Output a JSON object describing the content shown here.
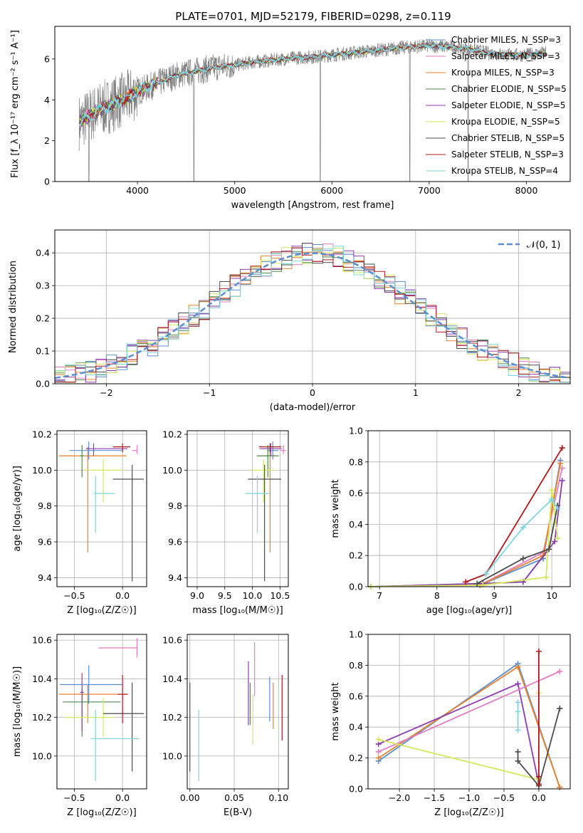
{
  "figure_title": "PLATE=0701, MJD=52179, FIBERID=0298, z=0.119",
  "colors": {
    "chabrier_miles": "#5a8fd6",
    "salpeter_miles": "#e57ac2",
    "kroupa_miles": "#e8822a",
    "chabrier_elodie": "#4f8a4f",
    "salpeter_elodie": "#8e3bb0",
    "kroupa_elodie": "#d6e85c",
    "chabrier_stelib": "#4d4d4d",
    "salpeter_stelib": "#b01a1a",
    "kroupa_stelib": "#7fd6de",
    "data": "#808080",
    "normal": "#5a8fd6"
  },
  "chart_data": [
    {
      "id": "spectrum",
      "type": "line",
      "xlabel": "wavelength [Angstrom, rest frame]",
      "ylabel": "Flux [f_λ 10⁻¹⁷ erg cm⁻² s⁻¹ A⁻¹]",
      "xlim": [
        3150,
        8450
      ],
      "ylim": [
        0,
        7.6
      ],
      "xticks": [
        4000,
        5000,
        6000,
        7000,
        8000
      ],
      "yticks": [
        0,
        2,
        4,
        6
      ],
      "grid": false,
      "legend_position": "right",
      "legend": [
        {
          "key": "chabrier_miles",
          "label": "Chabrier MILES, N_SSP=3"
        },
        {
          "key": "salpeter_miles",
          "label": "Salpeter MILES, N_SSP=3"
        },
        {
          "key": "kroupa_miles",
          "label": "Kroupa MILES, N_SSP=3"
        },
        {
          "key": "chabrier_elodie",
          "label": "Chabrier ELODIE, N_SSP=5"
        },
        {
          "key": "salpeter_elodie",
          "label": "Salpeter ELODIE, N_SSP=5"
        },
        {
          "key": "kroupa_elodie",
          "label": "Kroupa ELODIE, N_SSP=5"
        },
        {
          "key": "chabrier_stelib",
          "label": "Chabrier STELIB, N_SSP=5"
        },
        {
          "key": "salpeter_stelib",
          "label": "Salpeter STELIB, N_SSP=3"
        },
        {
          "key": "kroupa_stelib",
          "label": "Kroupa STELIB, N_SSP=4"
        }
      ],
      "continuum": {
        "x": [
          3400,
          3500,
          3600,
          3700,
          3800,
          3900,
          4000,
          4200,
          4400,
          4600,
          4800,
          5000,
          5200,
          5400,
          5600,
          5800,
          6000,
          6200,
          6400,
          6600,
          6800,
          7000,
          7200,
          7400,
          7600,
          7800,
          8000,
          8200
        ],
        "y": [
          2.9,
          3.2,
          3.5,
          3.7,
          3.9,
          4.1,
          4.4,
          4.8,
          5.2,
          5.4,
          5.6,
          5.7,
          5.85,
          5.95,
          6.05,
          6.1,
          6.2,
          6.3,
          6.4,
          6.5,
          6.6,
          6.65,
          6.6,
          6.5,
          6.3,
          6.2,
          6.2,
          6.3
        ]
      },
      "spike_wavelengths": [
        3500,
        4580,
        5880,
        6800,
        7400
      ]
    },
    {
      "id": "residuals",
      "type": "histogram",
      "xlabel": "(data-model)/error",
      "ylabel": "Normed distribution",
      "xlim": [
        -2.5,
        2.5
      ],
      "ylim": [
        0,
        0.47
      ],
      "xticks": [
        -2,
        -1,
        0,
        1,
        2
      ],
      "yticks": [
        0.0,
        0.1,
        0.2,
        0.3,
        0.4
      ],
      "grid": true,
      "legend_position": "top-right",
      "legend": [
        {
          "key": "normal",
          "label": "𝒩(0, 1)"
        }
      ],
      "bin_width": 0.1,
      "normal_curve": {
        "mean": 0,
        "sigma": 1
      }
    },
    {
      "id": "age_vs_Z",
      "type": "errorbar",
      "xlabel": "Z [log₁₀(Z/Z☉)]",
      "ylabel": "age  [log₁₀(age/yr)]",
      "xlim": [
        -0.68,
        0.25
      ],
      "ylim": [
        9.35,
        10.22
      ],
      "xticks": [
        -0.5,
        0.0
      ],
      "yticks": [
        9.4,
        9.6,
        9.8,
        10.0,
        10.2
      ],
      "grid": true,
      "points": [
        {
          "key": "chabrier_miles",
          "x": -0.35,
          "xlo": 0.2,
          "xhi": 0.35,
          "y": 10.11,
          "ylo": 0.05,
          "yhi": 0.05
        },
        {
          "key": "salpeter_miles",
          "x": 0.15,
          "xlo": 0.05,
          "xhi": 0.0,
          "y": 10.11,
          "ylo": 0.02,
          "yhi": 0.03
        },
        {
          "key": "kroupa_miles",
          "x": -0.36,
          "xlo": 0.3,
          "xhi": 0.4,
          "y": 10.08,
          "ylo": 0.54,
          "yhi": 0.05
        },
        {
          "key": "chabrier_elodie",
          "x": -0.42,
          "xlo": 0.02,
          "xhi": 0.02,
          "y": 10.08,
          "ylo": 0.12,
          "yhi": 0.06
        },
        {
          "key": "salpeter_elodie",
          "x": -0.3,
          "xlo": 0.08,
          "xhi": 0.35,
          "y": 10.12,
          "ylo": 0.04,
          "yhi": 0.03
        },
        {
          "key": "kroupa_elodie",
          "x": -0.2,
          "xlo": 0.2,
          "xhi": 0.2,
          "y": 10.0,
          "ylo": 0.18,
          "yhi": 0.06
        },
        {
          "key": "chabrier_stelib",
          "x": 0.1,
          "xlo": 0.2,
          "xhi": 0.12,
          "y": 9.95,
          "ylo": 0.57,
          "yhi": 0.08
        },
        {
          "key": "salpeter_stelib",
          "x": 0.0,
          "xlo": 0.1,
          "xhi": 0.08,
          "y": 10.13,
          "ylo": 0.03,
          "yhi": 0.02
        },
        {
          "key": "kroupa_stelib",
          "x": -0.28,
          "xlo": 0.02,
          "xhi": 0.2,
          "y": 9.87,
          "ylo": 0.22,
          "yhi": 0.1
        }
      ]
    },
    {
      "id": "age_vs_mass",
      "type": "errorbar",
      "xlabel": "mass [log₁₀(M/M☉)]",
      "ylabel": "",
      "xlim": [
        8.82,
        10.65
      ],
      "ylim": [
        9.35,
        10.22
      ],
      "xticks": [
        9.0,
        9.5,
        10.0,
        10.5
      ],
      "yticks": [
        9.4,
        9.6,
        9.8,
        10.0,
        10.2
      ],
      "grid": true,
      "points": [
        {
          "key": "chabrier_miles",
          "x": 10.37,
          "xlo": 0.1,
          "xhi": 0.1,
          "y": 10.11,
          "ylo": 0.05,
          "yhi": 0.05
        },
        {
          "key": "salpeter_miles",
          "x": 10.56,
          "xlo": 0.05,
          "xhi": 0.05,
          "y": 10.11,
          "ylo": 0.02,
          "yhi": 0.03
        },
        {
          "key": "kroupa_miles",
          "x": 10.32,
          "xlo": 0.1,
          "xhi": 0.1,
          "y": 10.08,
          "ylo": 0.54,
          "yhi": 0.05
        },
        {
          "key": "chabrier_elodie",
          "x": 10.28,
          "xlo": 0.2,
          "xhi": 0.2,
          "y": 10.08,
          "ylo": 0.12,
          "yhi": 0.06
        },
        {
          "key": "salpeter_elodie",
          "x": 10.33,
          "xlo": 0.2,
          "xhi": 0.2,
          "y": 10.12,
          "ylo": 0.04,
          "yhi": 0.03
        },
        {
          "key": "kroupa_elodie",
          "x": 10.2,
          "xlo": 0.2,
          "xhi": 0.2,
          "y": 10.0,
          "ylo": 0.18,
          "yhi": 0.06
        },
        {
          "key": "chabrier_stelib",
          "x": 10.22,
          "xlo": 0.3,
          "xhi": 0.3,
          "y": 9.95,
          "ylo": 0.57,
          "yhi": 0.08
        },
        {
          "key": "salpeter_stelib",
          "x": 10.32,
          "xlo": 0.2,
          "xhi": 0.2,
          "y": 10.13,
          "ylo": 0.03,
          "yhi": 0.02
        },
        {
          "key": "kroupa_stelib",
          "x": 10.09,
          "xlo": 0.22,
          "xhi": 0.22,
          "y": 9.87,
          "ylo": 0.22,
          "yhi": 0.1
        }
      ]
    },
    {
      "id": "mass_weight_vs_age",
      "type": "line",
      "xlabel": "age  [log₁₀(age/yr)]",
      "ylabel": "mass weight",
      "xlim": [
        6.8,
        10.32
      ],
      "ylim": [
        0,
        1
      ],
      "xticks": [
        7,
        8,
        9,
        10
      ],
      "yticks": [
        0.0,
        0.2,
        0.4,
        0.6,
        0.8,
        1.0
      ],
      "grid": true,
      "series": [
        {
          "key": "chabrier_miles",
          "x": [
            8.75,
            9.85,
            10.15
          ],
          "y": [
            0.01,
            0.18,
            0.81
          ]
        },
        {
          "key": "salpeter_miles",
          "x": [
            8.75,
            9.85,
            10.18
          ],
          "y": [
            0.01,
            0.22,
            0.76
          ]
        },
        {
          "key": "kroupa_miles",
          "x": [
            8.75,
            9.85,
            10.15
          ],
          "y": [
            0.01,
            0.2,
            0.79
          ]
        },
        {
          "key": "chabrier_elodie",
          "x": [
            6.85,
            8.8,
            9.5,
            9.95,
            10.1
          ],
          "y": [
            0.0,
            0.02,
            0.03,
            0.24,
            0.52
          ]
        },
        {
          "key": "salpeter_elodie",
          "x": [
            6.85,
            8.8,
            9.5,
            10.05,
            10.18
          ],
          "y": [
            0.0,
            0.02,
            0.03,
            0.29,
            0.68
          ]
        },
        {
          "key": "kroupa_elodie",
          "x": [
            6.85,
            8.8,
            9.9,
            10.0,
            10.1
          ],
          "y": [
            0.0,
            0.01,
            0.06,
            0.62,
            0.31
          ]
        },
        {
          "key": "chabrier_stelib",
          "x": [
            8.7,
            9.5,
            9.95,
            10.1
          ],
          "y": [
            0.02,
            0.18,
            0.24,
            0.52
          ]
        },
        {
          "key": "salpeter_stelib",
          "x": [
            8.5,
            8.85,
            10.18
          ],
          "y": [
            0.03,
            0.08,
            0.89
          ]
        },
        {
          "key": "kroupa_stelib",
          "x": [
            8.85,
            9.5,
            10.0,
            10.1
          ],
          "y": [
            0.08,
            0.38,
            0.56,
            0.5
          ]
        }
      ]
    },
    {
      "id": "mass_vs_Z",
      "type": "errorbar",
      "xlabel": "Z [log₁₀(Z/Z☉)]",
      "ylabel": "mass [log₁₀(M/M☉)]",
      "xlim": [
        -0.68,
        0.25
      ],
      "ylim": [
        9.83,
        10.63
      ],
      "xticks": [
        -0.5,
        0.0
      ],
      "yticks": [
        10.0,
        10.2,
        10.4,
        10.6
      ],
      "grid": true,
      "points": [
        {
          "key": "chabrier_miles",
          "x": -0.35,
          "xlo": 0.3,
          "xhi": 0.35,
          "y": 10.37,
          "ylo": 0.1,
          "yhi": 0.1
        },
        {
          "key": "salpeter_miles",
          "x": 0.15,
          "xlo": 0.4,
          "xhi": 0.0,
          "y": 10.56,
          "ylo": 0.05,
          "yhi": 0.05
        },
        {
          "key": "kroupa_miles",
          "x": -0.36,
          "xlo": 0.3,
          "xhi": 0.42,
          "y": 10.32,
          "ylo": 0.15,
          "yhi": 0.05
        },
        {
          "key": "chabrier_elodie",
          "x": -0.42,
          "xlo": 0.2,
          "xhi": 0.4,
          "y": 10.28,
          "ylo": 0.18,
          "yhi": 0.07
        },
        {
          "key": "salpeter_elodie",
          "x": -0.42,
          "xlo": 0.02,
          "xhi": 0.02,
          "y": 10.33,
          "ylo": 0.2,
          "yhi": 0.1
        },
        {
          "key": "kroupa_elodie",
          "x": -0.2,
          "xlo": 0.4,
          "xhi": 0.12,
          "y": 10.2,
          "ylo": 0.1,
          "yhi": 0.1
        },
        {
          "key": "chabrier_stelib",
          "x": 0.1,
          "xlo": 0.3,
          "xhi": 0.12,
          "y": 10.22,
          "ylo": 0.3,
          "yhi": 0.16
        },
        {
          "key": "salpeter_stelib",
          "x": 0.0,
          "xlo": 0.05,
          "xhi": 0.05,
          "y": 10.32,
          "ylo": 0.15,
          "yhi": 0.1
        },
        {
          "key": "kroupa_stelib",
          "x": -0.28,
          "xlo": 0.05,
          "xhi": 0.45,
          "y": 10.09,
          "ylo": 0.22,
          "yhi": 0.15
        }
      ]
    },
    {
      "id": "mass_vs_ebv",
      "type": "errorbar",
      "xlabel": "E(B-V)",
      "ylabel": "",
      "xlim": [
        -0.003,
        0.111
      ],
      "ylim": [
        9.83,
        10.63
      ],
      "xticks": [
        0.0,
        0.05,
        0.1
      ],
      "yticks": [
        10.0,
        10.2,
        10.4,
        10.6
      ],
      "grid": true,
      "points": [
        {
          "key": "chabrier_miles",
          "x": 0.09,
          "xlo": 0,
          "xhi": 0,
          "y": 10.28,
          "ylo": 0.1,
          "yhi": 0.13
        },
        {
          "key": "salpeter_miles",
          "x": 0.073,
          "xlo": 0,
          "xhi": 0,
          "y": 10.46,
          "ylo": 0.15,
          "yhi": 0.13
        },
        {
          "key": "kroupa_miles",
          "x": 0.094,
          "xlo": 0,
          "xhi": 0,
          "y": 10.26,
          "ylo": 0.12,
          "yhi": 0.12
        },
        {
          "key": "chabrier_elodie",
          "x": 0.068,
          "xlo": 0,
          "xhi": 0,
          "y": 10.26,
          "ylo": 0.1,
          "yhi": 0.12
        },
        {
          "key": "salpeter_elodie",
          "x": 0.066,
          "xlo": 0,
          "xhi": 0,
          "y": 10.32,
          "ylo": 0.16,
          "yhi": 0.17
        },
        {
          "key": "kroupa_elodie",
          "x": 0.071,
          "xlo": 0,
          "xhi": 0,
          "y": 10.2,
          "ylo": 0.14,
          "yhi": 0.12
        },
        {
          "key": "chabrier_stelib",
          "x": 0.0,
          "xlo": 0,
          "xhi": 0,
          "y": 10.15,
          "ylo": 0.23,
          "yhi": 0.23
        },
        {
          "key": "salpeter_stelib",
          "x": 0.104,
          "xlo": 0,
          "xhi": 0,
          "y": 10.25,
          "ylo": 0.17,
          "yhi": 0.17
        },
        {
          "key": "kroupa_stelib",
          "x": 0.01,
          "xlo": 0,
          "xhi": 0,
          "y": 10.06,
          "ylo": 0.19,
          "yhi": 0.18
        }
      ]
    },
    {
      "id": "mass_weight_vs_Z",
      "type": "line",
      "xlabel": "Z [log₁₀(Z/Z☉)]",
      "ylabel": "mass weight",
      "xlim": [
        -2.45,
        0.45
      ],
      "ylim": [
        0,
        1
      ],
      "xticks": [
        -2.0,
        -1.5,
        -1.0,
        -0.5,
        0.0
      ],
      "yticks": [
        0.0,
        0.2,
        0.4,
        0.6,
        0.8,
        1.0
      ],
      "grid": true,
      "series": [
        {
          "key": "chabrier_miles",
          "x": [
            -2.3,
            -0.3,
            0.3
          ],
          "y": [
            0.18,
            0.81,
            0.01
          ]
        },
        {
          "key": "kroupa_miles",
          "x": [
            -2.3,
            -0.3,
            0.3
          ],
          "y": [
            0.2,
            0.79,
            0.01
          ]
        },
        {
          "key": "salpeter_elodie",
          "x": [
            -2.3,
            -0.3,
            0.0
          ],
          "y": [
            0.29,
            0.68,
            0.03
          ]
        },
        {
          "key": "salpeter_miles",
          "x": [
            -2.3,
            0.3
          ],
          "y": [
            0.24,
            0.76
          ]
        },
        {
          "key": "kroupa_elodie",
          "x": [
            -2.3,
            0.0,
            0.0
          ],
          "y": [
            0.32,
            0.06,
            0.62
          ]
        },
        {
          "key": "chabrier_stelib",
          "x": [
            -0.3,
            -0.3,
            0.0,
            0.3,
            0.3
          ],
          "y": [
            0.24,
            0.18,
            0.02,
            0.52,
            0.52
          ]
        },
        {
          "key": "salpeter_stelib",
          "x": [
            0.0,
            0.0,
            0.0
          ],
          "y": [
            0.03,
            0.08,
            0.89
          ]
        },
        {
          "key": "kroupa_stelib",
          "x": [
            -0.3,
            -0.3,
            -0.3
          ],
          "y": [
            0.38,
            0.56,
            0.5
          ]
        }
      ]
    }
  ]
}
